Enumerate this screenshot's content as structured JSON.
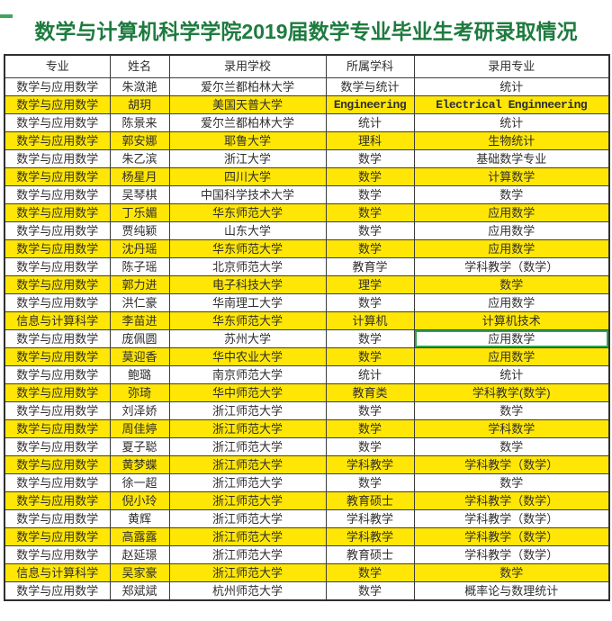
{
  "page": {
    "title": "数学与计算机科学学院2019届数学专业毕业生考研录取情况",
    "title_color": "#1e7b3f",
    "highlight_color": "#ffe605",
    "selected_cell_border_color": "#2da44e"
  },
  "table": {
    "headers": [
      "专业",
      "姓名",
      "录用学校",
      "所属学科",
      "录用专业"
    ],
    "rows": [
      {
        "cells": [
          "数学与应用数学",
          "朱潋滟",
          "爱尔兰都柏林大学",
          "数学与统计",
          "统计"
        ],
        "highlight": false
      },
      {
        "cells": [
          "数学与应用数学",
          "胡玥",
          "美国天普大学",
          "Engineering",
          "Electrical Enginneering"
        ],
        "highlight": true
      },
      {
        "cells": [
          "数学与应用数学",
          "陈景来",
          "爱尔兰都柏林大学",
          "统计",
          "统计"
        ],
        "highlight": false
      },
      {
        "cells": [
          "数学与应用数学",
          "郭安娜",
          "耶鲁大学",
          "理科",
          "生物统计"
        ],
        "highlight": true
      },
      {
        "cells": [
          "数学与应用数学",
          "朱乙滨",
          "浙江大学",
          "数学",
          "基础数学专业"
        ],
        "highlight": false
      },
      {
        "cells": [
          "数学与应用数学",
          "杨星月",
          "四川大学",
          "数学",
          "计算数学"
        ],
        "highlight": true
      },
      {
        "cells": [
          "数学与应用数学",
          "吴琴棋",
          "中国科学技术大学",
          "数学",
          "数学"
        ],
        "highlight": false
      },
      {
        "cells": [
          "数学与应用数学",
          "丁乐媚",
          "华东师范大学",
          "数学",
          "应用数学"
        ],
        "highlight": true
      },
      {
        "cells": [
          "数学与应用数学",
          "贾纯颖",
          "山东大学",
          "数学",
          "应用数学"
        ],
        "highlight": false
      },
      {
        "cells": [
          "数学与应用数学",
          "沈丹瑶",
          "华东师范大学",
          "数学",
          "应用数学"
        ],
        "highlight": true
      },
      {
        "cells": [
          "数学与应用数学",
          "陈子瑶",
          "北京师范大学",
          "教育学",
          "学科教学（数学）"
        ],
        "highlight": false
      },
      {
        "cells": [
          "数学与应用数学",
          "郭力进",
          "电子科技大学",
          "理学",
          "数学"
        ],
        "highlight": true
      },
      {
        "cells": [
          "数学与应用数学",
          "洪仁豪",
          "华南理工大学",
          "数学",
          "应用数学"
        ],
        "highlight": false
      },
      {
        "cells": [
          "信息与计算科学",
          "李苗进",
          "华东师范大学",
          "计算机",
          "计算机技术"
        ],
        "highlight": true
      },
      {
        "cells": [
          "数学与应用数学",
          "庞佩圆",
          "苏州大学",
          "数学",
          "应用数学"
        ],
        "highlight": false,
        "selected_cell": 4
      },
      {
        "cells": [
          "数学与应用数学",
          "莫迎香",
          "华中农业大学",
          "数学",
          "应用数学"
        ],
        "highlight": true
      },
      {
        "cells": [
          "数学与应用数学",
          "鲍璐",
          "南京师范大学",
          "统计",
          "统计"
        ],
        "highlight": false
      },
      {
        "cells": [
          "数学与应用数学",
          "弥琦",
          "华中师范大学",
          "教育类",
          "学科教学(数学)"
        ],
        "highlight": true
      },
      {
        "cells": [
          "数学与应用数学",
          "刘泽娇",
          "浙江师范大学",
          "数学",
          "数学"
        ],
        "highlight": false
      },
      {
        "cells": [
          "数学与应用数学",
          "周佳婷",
          "浙江师范大学",
          "数学",
          "学科数学"
        ],
        "highlight": true
      },
      {
        "cells": [
          "数学与应用数学",
          "夏子聪",
          "浙江师范大学",
          "数学",
          "数学"
        ],
        "highlight": false
      },
      {
        "cells": [
          "数学与应用数学",
          "黄梦蝶",
          "浙江师范大学",
          "学科教学",
          "学科教学（数学）"
        ],
        "highlight": true
      },
      {
        "cells": [
          "数学与应用数学",
          "徐一超",
          "浙江师范大学",
          "数学",
          "数学"
        ],
        "highlight": false
      },
      {
        "cells": [
          "数学与应用数学",
          "倪小玲",
          "浙江师范大学",
          "教育硕士",
          "学科教学（数学）"
        ],
        "highlight": true
      },
      {
        "cells": [
          "数学与应用数学",
          "黄辉",
          "浙江师范大学",
          "学科教学",
          "学科教学（数学）"
        ],
        "highlight": false
      },
      {
        "cells": [
          "数学与应用数学",
          "高露露",
          "浙江师范大学",
          "学科教学",
          "学科教学（数学）"
        ],
        "highlight": true
      },
      {
        "cells": [
          "数学与应用数学",
          "赵延璟",
          "浙江师范大学",
          "教育硕士",
          "学科教学（数学）"
        ],
        "highlight": false
      },
      {
        "cells": [
          "信息与计算科学",
          "吴家豪",
          "浙江师范大学",
          "数学",
          "数学"
        ],
        "highlight": true
      },
      {
        "cells": [
          "数学与应用数学",
          "郑斌斌",
          "杭州师范大学",
          "数学",
          "概率论与数理统计"
        ],
        "highlight": false
      }
    ]
  }
}
